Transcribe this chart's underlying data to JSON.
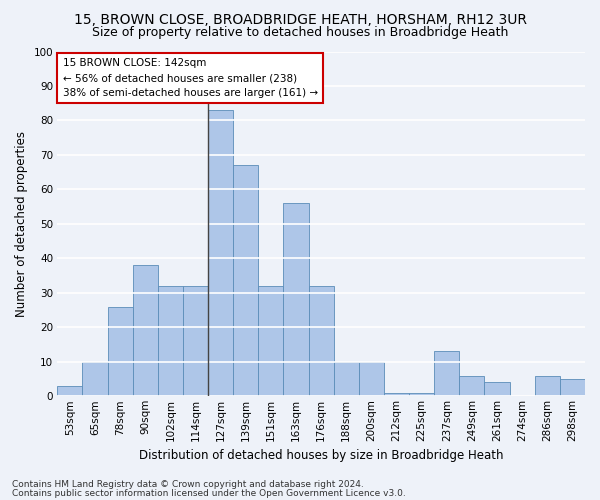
{
  "title1": "15, BROWN CLOSE, BROADBRIDGE HEATH, HORSHAM, RH12 3UR",
  "title2": "Size of property relative to detached houses in Broadbridge Heath",
  "xlabel": "Distribution of detached houses by size in Broadbridge Heath",
  "ylabel": "Number of detached properties",
  "footnote1": "Contains HM Land Registry data © Crown copyright and database right 2024.",
  "footnote2": "Contains public sector information licensed under the Open Government Licence v3.0.",
  "annotation_line1": "15 BROWN CLOSE: 142sqm",
  "annotation_line2": "← 56% of detached houses are smaller (238)",
  "annotation_line3": "38% of semi-detached houses are larger (161) →",
  "bar_labels": [
    "53sqm",
    "65sqm",
    "78sqm",
    "90sqm",
    "102sqm",
    "114sqm",
    "127sqm",
    "139sqm",
    "151sqm",
    "163sqm",
    "176sqm",
    "188sqm",
    "200sqm",
    "212sqm",
    "225sqm",
    "237sqm",
    "249sqm",
    "261sqm",
    "274sqm",
    "286sqm",
    "298sqm"
  ],
  "bar_values": [
    3,
    10,
    26,
    38,
    32,
    32,
    83,
    67,
    32,
    56,
    32,
    10,
    10,
    1,
    1,
    13,
    6,
    4,
    0,
    6,
    5
  ],
  "bar_color": "#aec6e8",
  "bar_edge_color": "#5b8db8",
  "vline_x": 6.0,
  "ylim": [
    0,
    100
  ],
  "yticks": [
    0,
    10,
    20,
    30,
    40,
    50,
    60,
    70,
    80,
    90,
    100
  ],
  "background_color": "#eef2f9",
  "grid_color": "#ffffff",
  "annotation_box_facecolor": "#ffffff",
  "annotation_box_edge": "#cc0000",
  "title1_fontsize": 10,
  "title2_fontsize": 9,
  "xlabel_fontsize": 8.5,
  "ylabel_fontsize": 8.5,
  "tick_fontsize": 7.5,
  "annotation_fontsize": 7.5,
  "footnote_fontsize": 6.5
}
